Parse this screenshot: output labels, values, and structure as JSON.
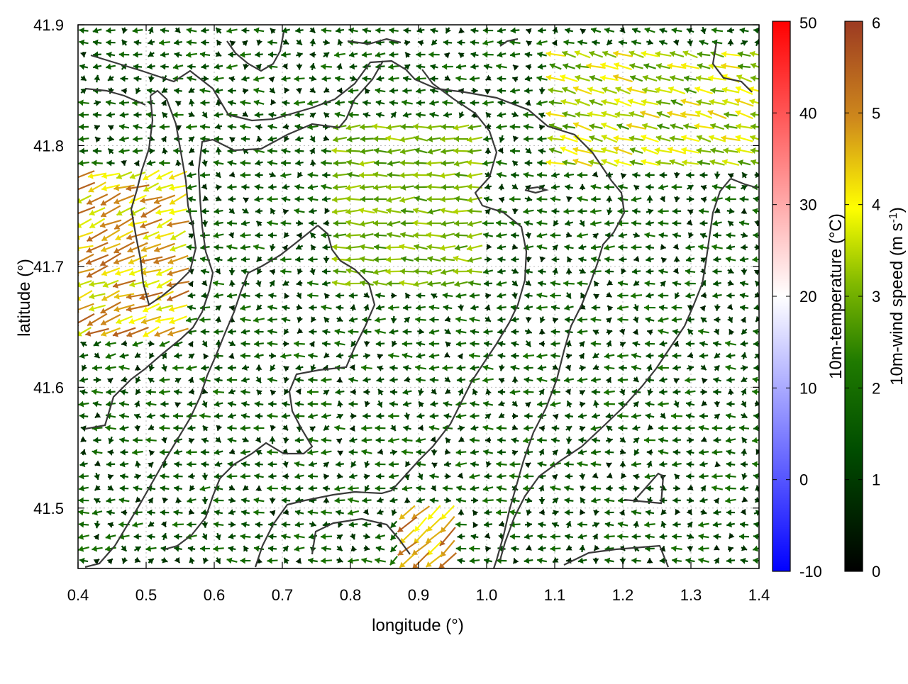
{
  "chart_data": {
    "type": "quiver",
    "xlabel": "longitude (°)",
    "ylabel": "latitude (°)",
    "xlim": [
      0.4,
      1.4
    ],
    "ylim": [
      41.45,
      41.9
    ],
    "x_ticks": [
      "0.4",
      "0.5",
      "0.6",
      "0.7",
      "0.8",
      "0.9",
      "1.0",
      "1.1",
      "1.2",
      "1.3",
      "1.4"
    ],
    "y_ticks": [
      "41.5",
      "41.6",
      "41.7",
      "41.8",
      "41.9"
    ],
    "grid": true,
    "arrow_direction": "predominantly westward (east-to-west)",
    "colorbars": [
      {
        "label": "10m-temperature (°C)",
        "ticks": [
          "-10",
          "0",
          "10",
          "20",
          "30",
          "40",
          "50"
        ],
        "range": [
          -10,
          50
        ],
        "colors": [
          "#0000ff",
          "#ffffff",
          "#ff0000"
        ]
      },
      {
        "label": "10m-wind speed (m s-1)",
        "label_main": "10m-wind speed (m s",
        "label_sup": "-1",
        "label_end": ")",
        "ticks": [
          "0",
          "1",
          "2",
          "3",
          "4",
          "5",
          "6"
        ],
        "range": [
          0,
          6
        ],
        "colors": [
          "#000000",
          "#005000",
          "#1a7a00",
          "#7fbf00",
          "#ffff00",
          "#d08a20",
          "#a03020"
        ]
      }
    ],
    "wind_field_regions": [
      {
        "description": "strong flow west of 0.55",
        "lon": [
          0.4,
          0.55
        ],
        "lat": [
          41.64,
          41.78
        ],
        "speed_ms": [
          3.5,
          5.5
        ]
      },
      {
        "description": "moderate flow band",
        "lon": [
          0.78,
          1.0
        ],
        "lat": [
          41.68,
          41.82
        ],
        "speed_ms": [
          2.5,
          3.5
        ]
      },
      {
        "description": "moderate flow north-east",
        "lon": [
          1.1,
          1.4
        ],
        "lat": [
          41.78,
          41.88
        ],
        "speed_ms": [
          2.5,
          4.5
        ]
      },
      {
        "description": "local jet south",
        "lon": [
          0.87,
          0.95
        ],
        "lat": [
          41.45,
          41.5
        ],
        "speed_ms": [
          4.0,
          5.5
        ]
      },
      {
        "description": "background",
        "lon": [
          0.4,
          1.4
        ],
        "lat": [
          41.45,
          41.9
        ],
        "speed_ms": [
          0.5,
          2.5
        ]
      }
    ]
  }
}
